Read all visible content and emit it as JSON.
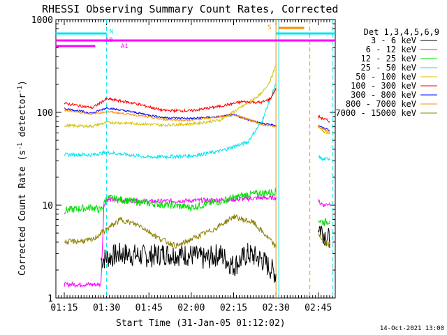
{
  "chart_data": {
    "type": "line",
    "title": "RHESSI Observing Summary Count Rates, Corrected",
    "xlabel": "Start Time (31-Jan-05 01:12:02)",
    "ylabel": "Corrected Count Rate (s",
    "ylabel_sup1": "-1",
    "ylabel_mid": " detector",
    "ylabel_sup2": "-1",
    "ylabel_end": ")",
    "y_scale": "log",
    "ylim": [
      1,
      1000
    ],
    "xlim": [
      "01:12:02",
      "02:51:00"
    ],
    "x_ticks": [
      "01:15",
      "01:30",
      "01:45",
      "02:00",
      "02:15",
      "02:30",
      "02:45"
    ],
    "y_ticks": [
      "1",
      "10",
      "100",
      "1000"
    ],
    "legend_title": "Det 1,3,4,5,6,9",
    "legend_position": "right",
    "footer_date": "14-Oct-2021 13:00",
    "series": [
      {
        "name": "3 - 6 keV",
        "color": "#000000",
        "points": [
          [
            "01:28",
            2.6
          ],
          [
            "01:35",
            3.0
          ],
          [
            "01:45",
            2.8
          ],
          [
            "01:50",
            3.0
          ],
          [
            "02:00",
            2.9
          ],
          [
            "02:05",
            2.6
          ],
          [
            "02:10",
            3.0
          ],
          [
            "02:15",
            2.2
          ],
          [
            "02:20",
            3.0
          ],
          [
            "02:25",
            2.6
          ],
          [
            "02:30",
            1.8
          ]
        ],
        "after": [
          [
            "02:45",
            6.0
          ],
          [
            "02:47",
            5.0
          ],
          [
            "02:49",
            4.2
          ]
        ]
      },
      {
        "name": "6 - 12 keV",
        "color": "#ff00ff",
        "points": [
          [
            "01:15",
            1.4
          ],
          [
            "01:28",
            1.4
          ],
          [
            "01:29",
            9.5
          ],
          [
            "01:30",
            11.5
          ],
          [
            "01:45",
            11.0
          ],
          [
            "02:00",
            11.2
          ],
          [
            "02:15",
            11.5
          ],
          [
            "02:25",
            12.0
          ],
          [
            "02:30",
            12.0
          ]
        ],
        "after": [
          [
            "02:45",
            11.0
          ],
          [
            "02:47",
            10.0
          ],
          [
            "02:49",
            10.5
          ]
        ]
      },
      {
        "name": "12 - 25 keV",
        "color": "#00dd00",
        "points": [
          [
            "01:15",
            8.8
          ],
          [
            "01:25",
            9.5
          ],
          [
            "01:28",
            8.8
          ],
          [
            "01:30",
            12.0
          ],
          [
            "01:45",
            10.5
          ],
          [
            "02:00",
            9.5
          ],
          [
            "02:10",
            11.0
          ],
          [
            "02:20",
            13.0
          ],
          [
            "02:30",
            14.0
          ]
        ],
        "after": [
          [
            "02:45",
            7.0
          ],
          [
            "02:47",
            6.5
          ],
          [
            "02:49",
            6.8
          ]
        ]
      },
      {
        "name": "25 - 50 keV",
        "color": "#00e5ee",
        "points": [
          [
            "01:15",
            35
          ],
          [
            "01:25",
            35
          ],
          [
            "01:30",
            37
          ],
          [
            "01:45",
            33
          ],
          [
            "02:00",
            34
          ],
          [
            "02:10",
            38
          ],
          [
            "02:20",
            48
          ],
          [
            "02:25",
            80
          ],
          [
            "02:28",
            140
          ],
          [
            "02:30",
            200
          ]
        ],
        "after": [
          [
            "02:45",
            33
          ],
          [
            "02:47",
            31
          ],
          [
            "02:49",
            32
          ]
        ]
      },
      {
        "name": "50 - 100 keV",
        "color": "#d4c000",
        "points": [
          [
            "01:15",
            72
          ],
          [
            "01:25",
            71
          ],
          [
            "01:30",
            78
          ],
          [
            "01:40",
            76
          ],
          [
            "01:50",
            73
          ],
          [
            "02:00",
            75
          ],
          [
            "02:10",
            82
          ],
          [
            "02:18",
            115
          ],
          [
            "02:25",
            160
          ],
          [
            "02:28",
            220
          ],
          [
            "02:30",
            320
          ]
        ],
        "after": [
          [
            "02:45",
            70
          ],
          [
            "02:47",
            62
          ],
          [
            "02:49",
            60
          ]
        ]
      },
      {
        "name": "100 - 300 keV",
        "color": "#ff0000",
        "points": [
          [
            "01:15",
            125
          ],
          [
            "01:25",
            112
          ],
          [
            "01:30",
            140
          ],
          [
            "01:40",
            125
          ],
          [
            "01:50",
            105
          ],
          [
            "02:00",
            104
          ],
          [
            "02:10",
            116
          ],
          [
            "02:18",
            130
          ],
          [
            "02:25",
            128
          ],
          [
            "02:28",
            140
          ],
          [
            "02:30",
            180
          ]
        ],
        "after": [
          [
            "02:45",
            90
          ],
          [
            "02:47",
            85
          ],
          [
            "02:49",
            80
          ]
        ]
      },
      {
        "name": "300 - 800 keV",
        "color": "#0000ff",
        "points": [
          [
            "01:15",
            110
          ],
          [
            "01:25",
            98
          ],
          [
            "01:30",
            112
          ],
          [
            "01:40",
            100
          ],
          [
            "01:50",
            88
          ],
          [
            "02:00",
            86
          ],
          [
            "02:10",
            90
          ],
          [
            "02:15",
            94
          ],
          [
            "02:20",
            84
          ],
          [
            "02:25",
            76
          ],
          [
            "02:30",
            72
          ]
        ],
        "after": [
          [
            "02:45",
            72
          ],
          [
            "02:47",
            68
          ],
          [
            "02:49",
            64
          ]
        ]
      },
      {
        "name": "800 - 7000 keV",
        "color": "#ff8c00",
        "points": [
          [
            "01:15",
            105
          ],
          [
            "01:25",
            96
          ],
          [
            "01:30",
            102
          ],
          [
            "01:40",
            94
          ],
          [
            "01:50",
            84
          ],
          [
            "02:00",
            82
          ],
          [
            "02:10",
            90
          ],
          [
            "02:15",
            94
          ],
          [
            "02:20",
            85
          ],
          [
            "02:25",
            74
          ],
          [
            "02:30",
            70
          ]
        ],
        "after": [
          [
            "02:45",
            70
          ],
          [
            "02:47",
            66
          ],
          [
            "02:49",
            62
          ]
        ]
      },
      {
        "name": "7000 - 15000 keV",
        "color": "#8b8000",
        "points": [
          [
            "01:15",
            4.0
          ],
          [
            "01:25",
            4.2
          ],
          [
            "01:28",
            5.0
          ],
          [
            "01:35",
            7.0
          ],
          [
            "01:42",
            6.0
          ],
          [
            "01:48",
            4.5
          ],
          [
            "01:55",
            3.6
          ],
          [
            "02:00",
            4.3
          ],
          [
            "02:08",
            5.5
          ],
          [
            "02:15",
            7.5
          ],
          [
            "02:22",
            6.5
          ],
          [
            "02:28",
            4.2
          ],
          [
            "02:30",
            3.5
          ]
        ],
        "after": [
          [
            "02:45",
            5.0
          ],
          [
            "02:47",
            4.0
          ],
          [
            "02:49",
            3.8
          ]
        ]
      }
    ],
    "annotations": {
      "N_label": "N",
      "A0_label": "A0",
      "A1_label": "A1",
      "S_label": "S",
      "N_bars": [
        [
          "01:12",
          "01:30"
        ],
        [
          "02:30",
          "02:51"
        ]
      ],
      "A0_bar": [
        "01:12",
        "02:51"
      ],
      "A1_bar": [
        "01:12",
        "01:26"
      ],
      "S_bar": [
        "02:31",
        "02:40"
      ],
      "vlines_cyan": [
        "01:30",
        "02:31",
        "02:50"
      ],
      "vlines_orange": [
        "02:30",
        "02:42"
      ],
      "colors": {
        "N": "#00e5ee",
        "A0": "#ff00ff",
        "A1": "#ff00ff",
        "S": "#ff8c00"
      }
    }
  }
}
